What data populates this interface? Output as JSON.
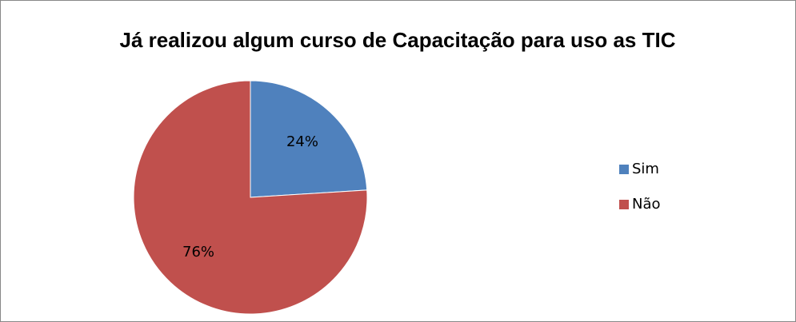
{
  "chart_data": {
    "type": "pie",
    "title": "Já realizou algum curso de Capacitação para uso as TIC",
    "categories": [
      "Sim",
      "Não"
    ],
    "values": [
      24,
      76
    ],
    "value_labels": [
      "24%",
      "76%"
    ],
    "colors": [
      "#4f81bd",
      "#c0504d"
    ],
    "legend": "right"
  }
}
